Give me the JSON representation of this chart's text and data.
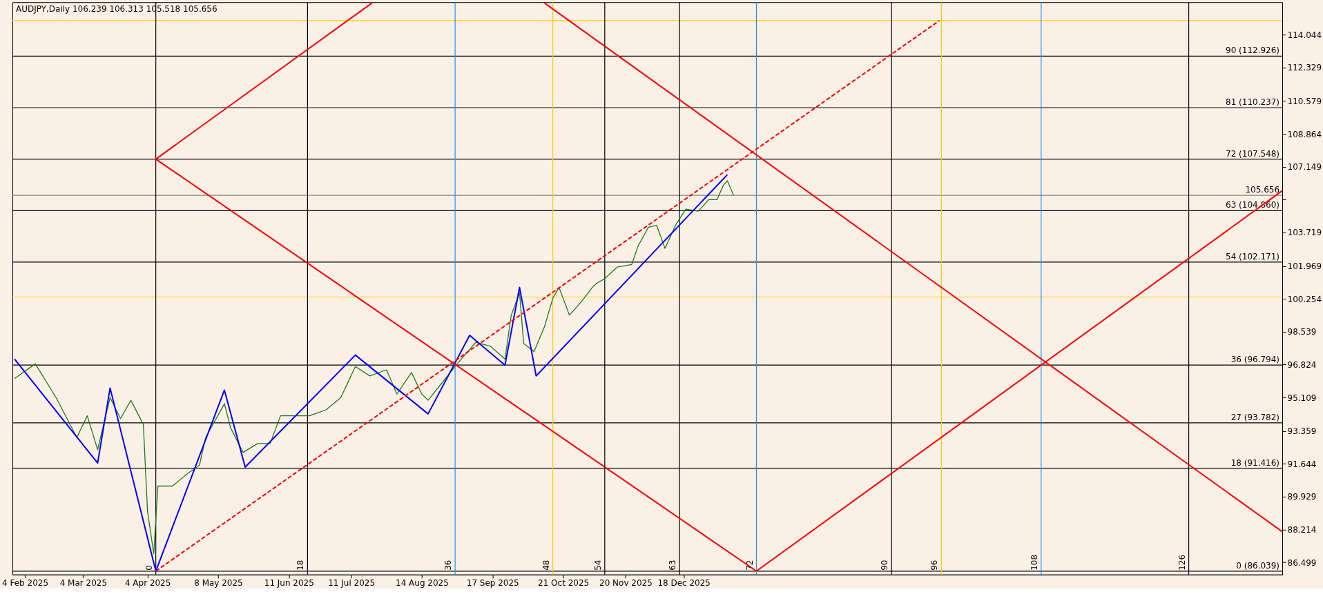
{
  "chart_data": {
    "type": "line",
    "title": "AUDJPY,Daily  106.239 106.313 105.518 105.656",
    "xlim": [
      "2025-01-29",
      "2026-10-02"
    ],
    "ylim": [
      85.86,
      115.74
    ],
    "xticks": [
      {
        "value": "2025-02-04",
        "label": "4 Feb 2025"
      },
      {
        "value": "2025-03-04",
        "label": "4 Mar 2025"
      },
      {
        "value": "2025-04-04",
        "label": "4 Apr 2025"
      },
      {
        "value": "2025-05-08",
        "label": "8 May 2025"
      },
      {
        "value": "2025-06-11",
        "label": "11 Jun 2025"
      },
      {
        "value": "2025-07-11",
        "label": "11 Jul 2025"
      },
      {
        "value": "2025-08-14",
        "label": "14 Aug 2025"
      },
      {
        "value": "2025-09-17",
        "label": "17 Sep 2025"
      },
      {
        "value": "2025-10-21",
        "label": "21 Oct 2025"
      },
      {
        "value": "2025-11-20",
        "label": "20 Nov 2025"
      },
      {
        "value": "2025-12-18",
        "label": "18 Dec 2025"
      }
    ],
    "yticks": [
      86.499,
      88.214,
      89.929,
      91.644,
      93.359,
      95.109,
      96.824,
      98.539,
      100.254,
      101.969,
      103.719,
      {
        "value": 105.434,
        "label": null
      },
      107.149,
      108.864,
      110.579,
      112.329,
      114.044
    ],
    "grid": false,
    "series": [
      {
        "color": "#1a7a1a",
        "x": [
          "2025-01-30",
          "2025-02-09",
          "2025-02-19",
          "2025-03-01",
          "2025-03-06",
          "2025-03-11",
          "2025-03-17",
          "2025-03-22",
          "2025-03-27",
          "2025-04-02",
          "2025-04-04",
          "2025-04-07",
          "2025-04-09",
          "2025-04-16",
          "2025-04-23",
          "2025-04-29",
          "2025-05-02",
          "2025-05-11",
          "2025-05-14",
          "2025-05-20",
          "2025-05-27",
          "2025-06-02",
          "2025-06-07",
          "2025-06-14",
          "2025-06-21",
          "2025-06-29",
          "2025-07-06",
          "2025-07-13",
          "2025-07-20",
          "2025-07-28",
          "2025-08-02",
          "2025-08-09",
          "2025-08-14",
          "2025-08-17",
          "2025-08-24",
          "2025-08-31",
          "2025-09-09",
          "2025-09-16",
          "2025-09-23",
          "2025-09-26",
          "2025-09-30",
          "2025-10-02",
          "2025-10-07",
          "2025-10-12",
          "2025-10-16",
          "2025-10-19",
          "2025-10-24",
          "2025-10-30",
          "2025-11-04",
          "2025-11-06",
          "2025-11-10",
          "2025-11-16",
          "2025-11-23",
          "2025-11-26",
          "2025-12-01",
          "2025-12-05",
          "2025-12-09",
          "2025-12-14",
          "2025-12-19",
          "2025-12-25",
          "2025-12-30",
          "2026-01-03",
          "2026-01-06",
          "2026-01-08",
          "2026-01-11"
        ],
        "values": [
          96.09,
          96.86,
          95.1,
          93.02,
          94.15,
          92.38,
          95.1,
          94.0,
          94.96,
          93.69,
          89.17,
          86.95,
          90.48,
          90.48,
          91.11,
          91.57,
          93.02,
          94.78,
          93.51,
          92.24,
          92.7,
          92.7,
          94.15,
          94.15,
          94.15,
          94.47,
          95.1,
          96.72,
          96.23,
          96.55,
          95.28,
          96.41,
          95.28,
          94.96,
          95.91,
          96.86,
          97.99,
          97.78,
          97.11,
          99.4,
          100.57,
          97.92,
          97.5,
          98.8,
          100.28,
          100.85,
          99.4,
          100.14,
          100.85,
          101.06,
          101.31,
          101.91,
          102.05,
          103.0,
          103.99,
          104.09,
          102.89,
          104.09,
          104.94,
          104.83,
          105.43,
          105.43,
          106.17,
          106.42,
          105.66
        ]
      },
      {
        "color": "#0000ff",
        "x": [
          "2025-01-30",
          "2025-03-11",
          "2025-03-17",
          "2025-04-08",
          "2025-05-11",
          "2025-05-21",
          "2025-07-13",
          "2025-08-17",
          "2025-09-06",
          "2025-09-23",
          "2025-09-30",
          "2025-10-08",
          "2026-01-08"
        ],
        "values": [
          97.11,
          91.68,
          95.6,
          86.04,
          95.49,
          91.47,
          97.32,
          94.25,
          98.35,
          96.79,
          100.85,
          96.23,
          106.74
        ]
      },
      {
        "color": "#ff0000",
        "line_style": "dashed",
        "x": [
          "2025-04-08",
          "2026-04-20"
        ],
        "values": [
          86.04,
          114.78
        ]
      },
      {
        "color": "#ff0000",
        "x": [
          "2025-04-08",
          "2026-01-22"
        ],
        "values": [
          107.55,
          86.04
        ]
      },
      {
        "color": "#ff0000",
        "x": [
          "2025-04-08",
          "2025-07-21"
        ],
        "values": [
          107.55,
          115.7
        ]
      },
      {
        "color": "#ff0000",
        "x": [
          "2025-10-12",
          "2026-10-02"
        ],
        "values": [
          115.7,
          88.1
        ]
      },
      {
        "color": "#ff0000",
        "x": [
          "2026-01-22",
          "2026-10-02"
        ],
        "values": [
          86.04,
          105.9
        ]
      }
    ],
    "ref_lines": [
      {
        "axis": "y",
        "value": 86.039,
        "label": "0 (86.039)",
        "color": "#000000"
      },
      {
        "axis": "y",
        "value": 91.416,
        "label": "18 (91.416)",
        "color": "#000000"
      },
      {
        "axis": "y",
        "value": 93.782,
        "label": "27 (93.782)",
        "color": "#000000"
      },
      {
        "axis": "y",
        "value": 96.794,
        "label": "36 (96.794)",
        "color": "#000000"
      },
      {
        "axis": "y",
        "value": 102.171,
        "label": "54 (102.171)",
        "color": "#000000"
      },
      {
        "axis": "y",
        "value": 104.86,
        "label": "63 (104.860)",
        "color": "#000000"
      },
      {
        "axis": "y",
        "value": 107.548,
        "label": "72 (107.548)",
        "color": "#000000"
      },
      {
        "axis": "y",
        "value": 110.237,
        "label": "81 (110.237)",
        "color": "#000000"
      },
      {
        "axis": "y",
        "value": 112.926,
        "label": "90 (112.926)",
        "color": "#000000"
      },
      {
        "axis": "y",
        "value": 100.35,
        "color": "#ffcc00"
      },
      {
        "axis": "y",
        "value": 114.78,
        "color": "#ffcc00"
      },
      {
        "axis": "y",
        "value": 105.656,
        "label": "105.656",
        "color": "#808080"
      },
      {
        "axis": "x",
        "value": "2025-04-08",
        "label": "0",
        "color": "#000000"
      },
      {
        "axis": "x",
        "value": "2025-06-20",
        "label": "18",
        "color": "#000000"
      },
      {
        "axis": "x",
        "value": "2025-08-30",
        "label": "36",
        "color": "#1e90ff"
      },
      {
        "axis": "x",
        "value": "2025-10-16",
        "label": "48",
        "color": "#ffcc00"
      },
      {
        "axis": "x",
        "value": "2025-11-10",
        "label": "54",
        "color": "#000000"
      },
      {
        "axis": "x",
        "value": "2025-12-16",
        "label": "63",
        "color": "#000000"
      },
      {
        "axis": "x",
        "value": "2026-01-22",
        "label": "72",
        "color": "#1e90ff"
      },
      {
        "axis": "x",
        "value": "2026-03-28",
        "label": "90",
        "color": "#000000"
      },
      {
        "axis": "x",
        "value": "2026-04-21",
        "label": "96",
        "color": "#ffcc00"
      },
      {
        "axis": "x",
        "value": "2026-06-08",
        "label": "108",
        "color": "#1e90ff"
      },
      {
        "axis": "x",
        "value": "2026-08-18",
        "label": "126",
        "color": "#000000"
      }
    ]
  }
}
